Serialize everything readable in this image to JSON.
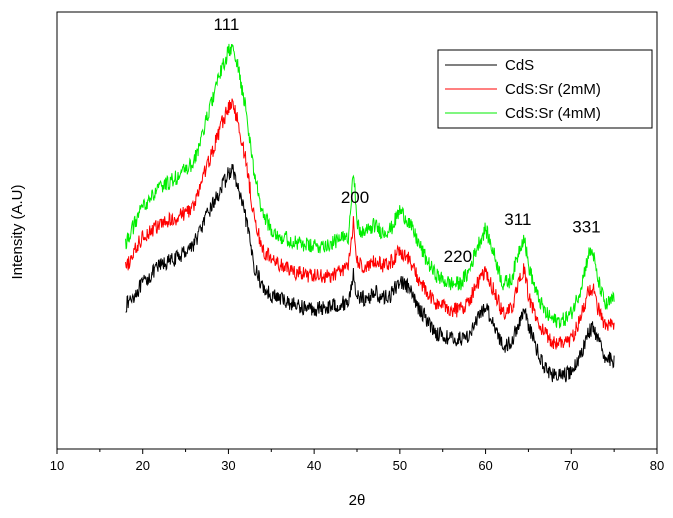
{
  "chart_data": {
    "type": "line",
    "title": "",
    "xlabel": "2θ",
    "ylabel": "Intensity (A.U)",
    "xlim": [
      10,
      80
    ],
    "ylim": [
      0,
      100
    ],
    "x_ticks": [
      "10",
      "20",
      "30",
      "40",
      "50",
      "60",
      "70",
      "80"
    ],
    "y_ticks_shown": false,
    "grid": false,
    "legend_position": "top-right",
    "annotations": [
      {
        "text": "111",
        "x": 30
      },
      {
        "text": "200",
        "x": 45
      },
      {
        "text": "220",
        "x": 57
      },
      {
        "text": "311",
        "x": 64
      },
      {
        "text": "331",
        "x": 72
      }
    ],
    "series": [
      {
        "name": "CdS",
        "color": "#000000",
        "x": [
          18,
          20,
          22,
          24,
          26,
          27,
          28,
          29,
          30,
          30.5,
          31,
          32,
          33,
          34,
          35,
          36,
          38,
          40,
          42,
          44,
          44.6,
          45,
          45.5,
          46,
          47,
          48,
          49,
          50,
          51,
          52,
          53,
          54,
          55,
          56,
          57,
          58,
          59,
          60,
          61,
          62,
          63,
          64,
          64.5,
          65,
          66,
          67,
          68,
          69,
          70,
          71,
          72,
          72.5,
          73,
          74,
          75
        ],
        "values": [
          31,
          37,
          42,
          44,
          48,
          53,
          58,
          62,
          67,
          68,
          64,
          55,
          42,
          36,
          34,
          33,
          31,
          30,
          31,
          32,
          40,
          33,
          34,
          32,
          35,
          33,
          34,
          38,
          36,
          31,
          28,
          24,
          23,
          22,
          22,
          23,
          27,
          31,
          26,
          20,
          21,
          27,
          30,
          26,
          19,
          14,
          12,
          12,
          13,
          17,
          24,
          25,
          22,
          17,
          16
        ]
      },
      {
        "name": "CdS:Sr (2mM)",
        "color": "#ff0000",
        "x": [
          18,
          20,
          22,
          24,
          26,
          27,
          28,
          29,
          30,
          30.5,
          31,
          32,
          33,
          34,
          35,
          36,
          38,
          40,
          42,
          44,
          44.6,
          45,
          45.5,
          46,
          47,
          48,
          49,
          50,
          51,
          52,
          53,
          54,
          55,
          56,
          57,
          58,
          59,
          60,
          61,
          62,
          63,
          64,
          64.5,
          65,
          66,
          67,
          68,
          69,
          70,
          71,
          72,
          72.5,
          73,
          74,
          75
        ],
        "values": [
          41,
          50,
          53,
          55,
          58,
          66,
          72,
          79,
          85,
          86,
          82,
          71,
          55,
          46,
          44,
          42,
          40,
          39,
          39,
          42,
          54,
          43,
          42,
          41,
          43,
          42,
          43,
          46,
          44,
          39,
          35,
          32,
          31,
          30,
          30,
          32,
          37,
          40,
          35,
          29,
          30,
          38,
          41,
          34,
          27,
          23,
          21,
          21,
          22,
          27,
          35,
          36,
          31,
          25,
          26
        ]
      },
      {
        "name": "CdS:Sr (4mM)",
        "color": "#00ee00",
        "x": [
          18,
          20,
          22,
          24,
          26,
          27,
          28,
          29,
          30,
          30.5,
          31,
          32,
          33,
          34,
          35,
          36,
          38,
          40,
          42,
          44,
          44.6,
          45,
          45.5,
          46,
          47,
          48,
          49,
          50,
          51,
          52,
          53,
          54,
          55,
          56,
          57,
          58,
          59,
          60,
          61,
          62,
          63,
          64,
          64.5,
          65,
          66,
          67,
          68,
          69,
          70,
          71,
          72,
          72.5,
          73,
          74,
          75
        ],
        "values": [
          48,
          58,
          63,
          66,
          70,
          78,
          86,
          94,
          100,
          101,
          97,
          85,
          67,
          56,
          52,
          50,
          48,
          47,
          48,
          50,
          69,
          53,
          51,
          51,
          53,
          51,
          52,
          57,
          54,
          49,
          44,
          40,
          38,
          37,
          37,
          40,
          47,
          52,
          45,
          37,
          38,
          47,
          50,
          42,
          34,
          29,
          27,
          27,
          29,
          35,
          45,
          46,
          39,
          31,
          33
        ]
      }
    ]
  }
}
